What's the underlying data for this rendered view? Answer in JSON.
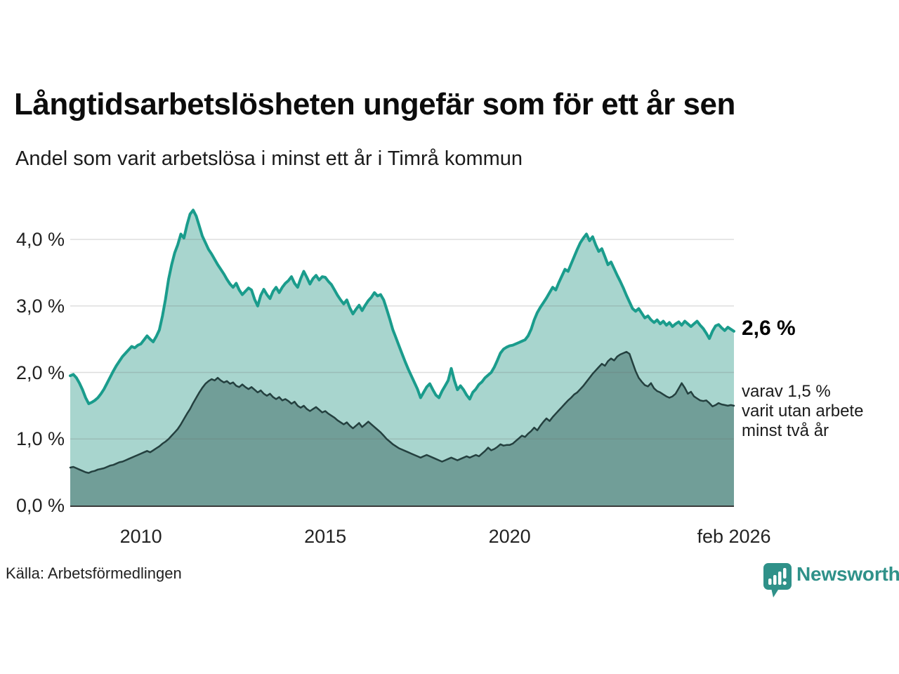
{
  "header": {
    "title": "Långtidsarbetslösheten ungefär som för ett år sen",
    "subtitle": "Andel som varit arbetslösa i minst ett år i Timrå kommun"
  },
  "annotations": {
    "latest_total": "2,6 %",
    "latest_detail_lines": [
      "varav 1,5 %",
      "varit utan arbete",
      "minst två år"
    ]
  },
  "footer": {
    "source": "Källa: Arbetsförmedlingen",
    "brand_name": "Newsworthy"
  },
  "colors": {
    "total_line": "#1a9c8c",
    "total_fill": "#a8d5ce",
    "two_year_line": "#24403f",
    "two_year_fill": "#719e98",
    "gridline": "#6b6b6b",
    "axis": "#3a3a3a",
    "brand": "#2f9189"
  },
  "chart_data": {
    "type": "area",
    "unit": "%",
    "x_start_year": 2008.083,
    "x_end_year": 2026.083,
    "x_ticks": [
      {
        "year": 2010,
        "label": "2010"
      },
      {
        "year": 2015,
        "label": "2015"
      },
      {
        "year": 2020,
        "label": "2020"
      },
      {
        "year": 2026.083,
        "label": "feb 2026"
      }
    ],
    "y_ticks": [
      {
        "value": 0,
        "label": "0,0 %"
      },
      {
        "value": 1,
        "label": "1,0 %"
      },
      {
        "value": 2,
        "label": "2,0 %"
      },
      {
        "value": 3,
        "label": "3,0 %"
      },
      {
        "value": 4,
        "label": "4,0 %"
      }
    ],
    "ylim": [
      0,
      4.6
    ],
    "grid": true,
    "legend_position": "none",
    "series": [
      {
        "name": "Andel arbetslösa minst ett år",
        "latest_label": "2,6 %",
        "values": [
          1.95,
          1.97,
          1.92,
          1.84,
          1.74,
          1.62,
          1.53,
          1.55,
          1.58,
          1.62,
          1.68,
          1.75,
          1.84,
          1.93,
          2.02,
          2.1,
          2.17,
          2.24,
          2.29,
          2.34,
          2.39,
          2.37,
          2.41,
          2.43,
          2.49,
          2.55,
          2.5,
          2.46,
          2.54,
          2.64,
          2.85,
          3.1,
          3.4,
          3.62,
          3.8,
          3.92,
          4.08,
          4.02,
          4.22,
          4.38,
          4.44,
          4.35,
          4.2,
          4.05,
          3.95,
          3.85,
          3.78,
          3.7,
          3.62,
          3.55,
          3.48,
          3.4,
          3.33,
          3.28,
          3.34,
          3.24,
          3.17,
          3.22,
          3.27,
          3.24,
          3.1,
          3.0,
          3.16,
          3.25,
          3.17,
          3.11,
          3.22,
          3.28,
          3.2,
          3.28,
          3.34,
          3.38,
          3.44,
          3.34,
          3.28,
          3.41,
          3.52,
          3.43,
          3.33,
          3.41,
          3.46,
          3.39,
          3.44,
          3.43,
          3.37,
          3.32,
          3.24,
          3.16,
          3.09,
          3.03,
          3.09,
          2.97,
          2.88,
          2.95,
          3.01,
          2.93,
          3.01,
          3.08,
          3.13,
          3.2,
          3.15,
          3.17,
          3.09,
          2.95,
          2.8,
          2.64,
          2.52,
          2.4,
          2.28,
          2.16,
          2.05,
          1.95,
          1.85,
          1.75,
          1.62,
          1.7,
          1.78,
          1.83,
          1.74,
          1.66,
          1.62,
          1.72,
          1.8,
          1.88,
          2.06,
          1.88,
          1.74,
          1.8,
          1.74,
          1.66,
          1.6,
          1.7,
          1.75,
          1.82,
          1.86,
          1.92,
          1.96,
          2.0,
          2.08,
          2.18,
          2.29,
          2.35,
          2.38,
          2.4,
          2.41,
          2.43,
          2.45,
          2.47,
          2.49,
          2.55,
          2.65,
          2.79,
          2.9,
          2.98,
          3.05,
          3.12,
          3.2,
          3.28,
          3.24,
          3.35,
          3.45,
          3.55,
          3.52,
          3.63,
          3.74,
          3.85,
          3.95,
          4.02,
          4.08,
          3.98,
          4.04,
          3.92,
          3.82,
          3.86,
          3.74,
          3.62,
          3.66,
          3.56,
          3.46,
          3.37,
          3.27,
          3.16,
          3.06,
          2.96,
          2.92,
          2.96,
          2.89,
          2.82,
          2.85,
          2.79,
          2.75,
          2.79,
          2.73,
          2.77,
          2.71,
          2.75,
          2.69,
          2.73,
          2.76,
          2.71,
          2.77,
          2.73,
          2.69,
          2.73,
          2.77,
          2.71,
          2.66,
          2.59,
          2.51,
          2.62,
          2.7,
          2.72,
          2.67,
          2.63,
          2.68,
          2.65,
          2.62
        ]
      },
      {
        "name": "Andel utan arbete minst två år",
        "latest_label": "1,5 %",
        "values": [
          0.57,
          0.58,
          0.56,
          0.54,
          0.52,
          0.5,
          0.49,
          0.51,
          0.52,
          0.54,
          0.55,
          0.56,
          0.58,
          0.6,
          0.61,
          0.63,
          0.65,
          0.66,
          0.68,
          0.7,
          0.72,
          0.74,
          0.76,
          0.78,
          0.8,
          0.82,
          0.8,
          0.83,
          0.86,
          0.89,
          0.93,
          0.96,
          1.0,
          1.05,
          1.1,
          1.15,
          1.22,
          1.3,
          1.38,
          1.45,
          1.54,
          1.62,
          1.7,
          1.77,
          1.83,
          1.87,
          1.9,
          1.88,
          1.92,
          1.88,
          1.85,
          1.87,
          1.83,
          1.85,
          1.8,
          1.78,
          1.82,
          1.78,
          1.75,
          1.78,
          1.74,
          1.7,
          1.73,
          1.68,
          1.65,
          1.68,
          1.63,
          1.6,
          1.63,
          1.58,
          1.6,
          1.57,
          1.53,
          1.56,
          1.5,
          1.47,
          1.5,
          1.45,
          1.42,
          1.45,
          1.48,
          1.44,
          1.4,
          1.42,
          1.38,
          1.35,
          1.32,
          1.28,
          1.25,
          1.22,
          1.25,
          1.2,
          1.16,
          1.2,
          1.24,
          1.18,
          1.22,
          1.26,
          1.22,
          1.18,
          1.14,
          1.1,
          1.05,
          1.0,
          0.96,
          0.92,
          0.89,
          0.86,
          0.84,
          0.82,
          0.8,
          0.78,
          0.76,
          0.74,
          0.72,
          0.74,
          0.76,
          0.74,
          0.72,
          0.7,
          0.68,
          0.66,
          0.68,
          0.7,
          0.72,
          0.7,
          0.68,
          0.7,
          0.72,
          0.74,
          0.72,
          0.74,
          0.76,
          0.74,
          0.78,
          0.82,
          0.87,
          0.83,
          0.85,
          0.88,
          0.92,
          0.9,
          0.91,
          0.91,
          0.93,
          0.97,
          1.01,
          1.05,
          1.03,
          1.08,
          1.12,
          1.17,
          1.13,
          1.2,
          1.26,
          1.31,
          1.27,
          1.33,
          1.38,
          1.43,
          1.48,
          1.53,
          1.58,
          1.62,
          1.67,
          1.7,
          1.75,
          1.8,
          1.86,
          1.92,
          1.98,
          2.03,
          2.08,
          2.13,
          2.1,
          2.17,
          2.21,
          2.18,
          2.24,
          2.27,
          2.29,
          2.31,
          2.28,
          2.15,
          2.02,
          1.92,
          1.86,
          1.81,
          1.79,
          1.84,
          1.76,
          1.72,
          1.7,
          1.67,
          1.64,
          1.62,
          1.64,
          1.68,
          1.76,
          1.84,
          1.77,
          1.68,
          1.71,
          1.64,
          1.61,
          1.58,
          1.57,
          1.58,
          1.54,
          1.49,
          1.51,
          1.54,
          1.52,
          1.51,
          1.5,
          1.51,
          1.5
        ]
      }
    ]
  }
}
